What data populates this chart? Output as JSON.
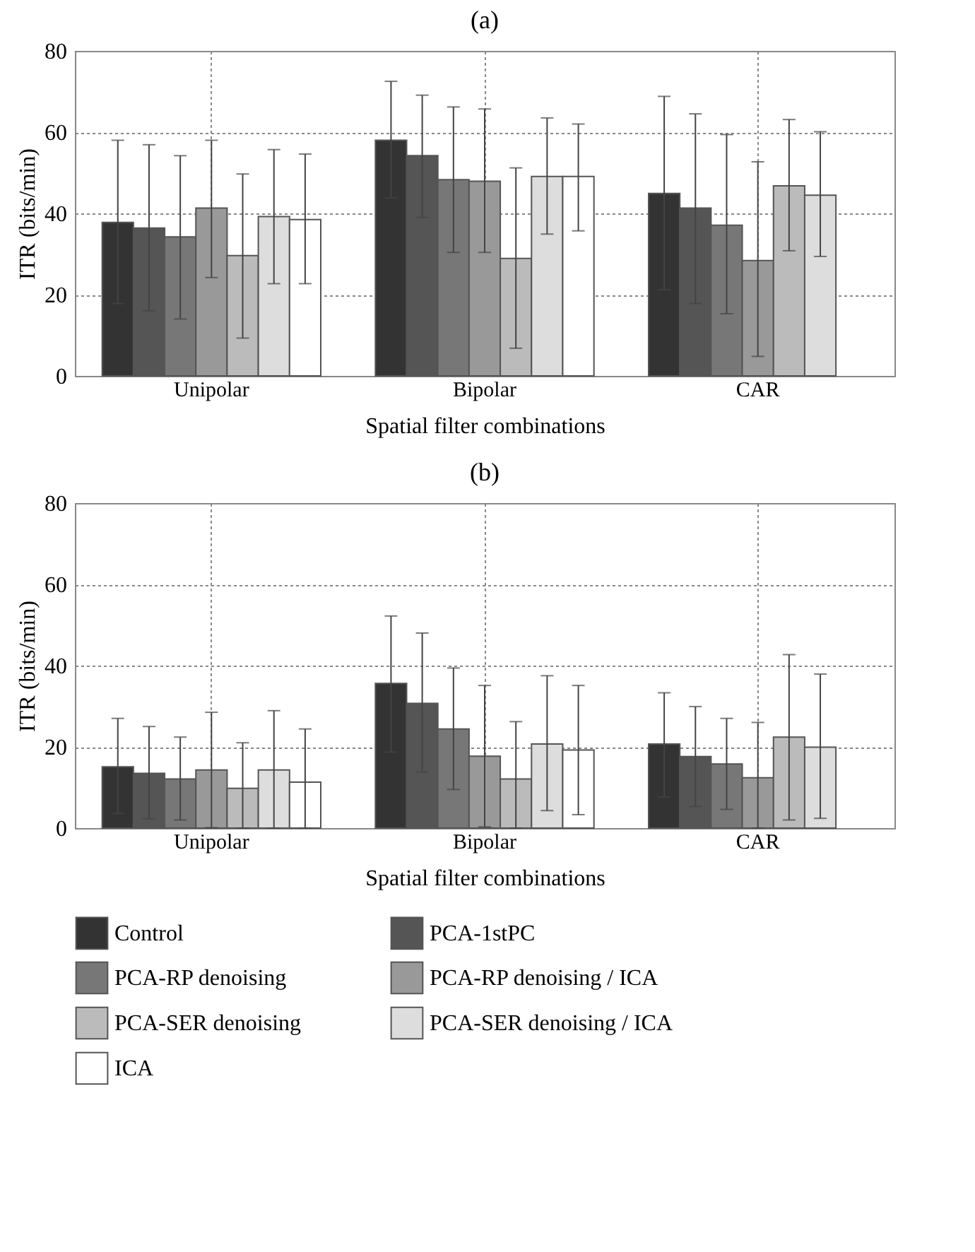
{
  "chart_data": [
    {
      "type": "bar",
      "title": "(a)",
      "xlabel": "Spatial filter combinations",
      "ylabel": "ITR (bits/min)",
      "categories": [
        "Unipolar",
        "Bipolar",
        "CAR"
      ],
      "series": [
        {
          "name": "Control",
          "color": "#333333",
          "values": [
            37.8,
            58.0,
            44.9
          ],
          "errors": [
            [
              17.8,
              58.0
            ],
            [
              43.8,
              72.5
            ],
            [
              21.2,
              68.8
            ]
          ]
        },
        {
          "name": "PCA-1stPC",
          "color": "#555555",
          "values": [
            36.4,
            54.2,
            41.3
          ],
          "errors": [
            [
              16.0,
              56.9
            ],
            [
              39.0,
              69.1
            ],
            [
              17.8,
              64.5
            ]
          ]
        },
        {
          "name": "PCA-RP denoising",
          "color": "#777777",
          "values": [
            34.2,
            48.3,
            37.1
          ],
          "errors": [
            [
              14.0,
              54.2
            ],
            [
              30.4,
              66.2
            ],
            [
              15.3,
              59.4
            ]
          ]
        },
        {
          "name": "PCA-RP denoising / ICA",
          "color": "#999999",
          "values": [
            41.3,
            47.9,
            28.4
          ],
          "errors": [
            [
              24.2,
              58.0
            ],
            [
              30.4,
              65.7
            ],
            [
              4.8,
              52.7
            ]
          ]
        },
        {
          "name": "PCA-SER denoising",
          "color": "#bbbbbb",
          "values": [
            29.6,
            28.9,
            46.8
          ],
          "errors": [
            [
              9.3,
              49.7
            ],
            [
              6.8,
              51.2
            ],
            [
              30.8,
              63.1
            ]
          ]
        },
        {
          "name": "PCA-SER denoising / ICA",
          "color": "#dddddd",
          "values": [
            39.2,
            49.1,
            44.5
          ],
          "errors": [
            [
              22.7,
              55.7
            ],
            [
              34.9,
              63.5
            ],
            [
              29.4,
              60.1
            ]
          ]
        },
        {
          "name": "ICA",
          "color": "#ffffff",
          "values": [
            38.5,
            49.1,
            null
          ],
          "errors": [
            [
              22.7,
              54.6
            ],
            [
              35.7,
              62.0
            ],
            null
          ]
        }
      ],
      "ylim": [
        0,
        80
      ],
      "yticks": [
        0,
        20,
        40,
        60,
        80
      ],
      "grid": true,
      "legend": "bottom"
    },
    {
      "type": "bar",
      "title": "(b)",
      "xlabel": "Spatial filter combinations",
      "ylabel": "ITR (bits/min)",
      "categories": [
        "Unipolar",
        "Bipolar",
        "CAR"
      ],
      "series": [
        {
          "name": "Control",
          "color": "#333333",
          "values": [
            15.1,
            35.6,
            20.7
          ],
          "errors": [
            [
              3.6,
              27.0
            ],
            [
              18.7,
              52.2
            ],
            [
              7.6,
              33.3
            ]
          ]
        },
        {
          "name": "PCA-1stPC",
          "color": "#555555",
          "values": [
            13.5,
            30.7,
            17.6
          ],
          "errors": [
            [
              2.3,
              25.0
            ],
            [
              13.8,
              48.0
            ],
            [
              5.3,
              29.9
            ]
          ]
        },
        {
          "name": "PCA-RP denoising",
          "color": "#777777",
          "values": [
            12.1,
            24.4,
            15.8
          ],
          "errors": [
            [
              2.0,
              22.4
            ],
            [
              9.5,
              39.4
            ],
            [
              4.6,
              27.0
            ]
          ]
        },
        {
          "name": "PCA-RP denoising / ICA",
          "color": "#999999",
          "values": [
            14.3,
            17.7,
            12.4
          ],
          "errors": [
            [
              0.1,
              28.5
            ],
            [
              0.3,
              35.1
            ],
            [
              0,
              26.0
            ]
          ]
        },
        {
          "name": "PCA-SER denoising",
          "color": "#bbbbbb",
          "values": [
            9.8,
            12.1,
            22.4
          ],
          "errors": [
            [
              0,
              21.0
            ],
            [
              0,
              26.2
            ],
            [
              2.0,
              42.7
            ]
          ]
        },
        {
          "name": "PCA-SER denoising / ICA",
          "color": "#dddddd",
          "values": [
            14.3,
            20.7,
            19.9
          ],
          "errors": [
            [
              0,
              28.9
            ],
            [
              4.3,
              37.5
            ],
            [
              2.4,
              37.9
            ]
          ]
        },
        {
          "name": "ICA",
          "color": "#ffffff",
          "values": [
            11.3,
            19.2,
            null
          ],
          "errors": [
            [
              0,
              24.4
            ],
            [
              3.3,
              35.1
            ],
            null
          ]
        }
      ],
      "ylim": [
        0,
        80
      ],
      "yticks": [
        0,
        20,
        40,
        60,
        80
      ],
      "grid": true,
      "legend": "bottom"
    }
  ]
}
